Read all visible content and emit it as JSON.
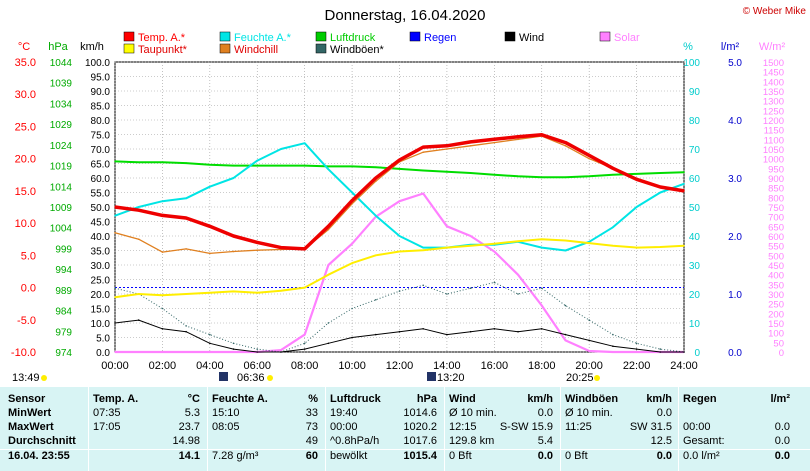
{
  "title": "Donnerstag, 16.04.2020",
  "copyright": "© Weber Mike",
  "legend": [
    {
      "label": "Temp. A.*",
      "color": "#ff0000"
    },
    {
      "label": "Feuchte A.*",
      "color": "#00e5e5"
    },
    {
      "label": "Luftdruck",
      "color": "#00cc00"
    },
    {
      "label": "Regen",
      "color": "#0000ff"
    },
    {
      "label": "Wind",
      "color": "#000000"
    },
    {
      "label": "Solar",
      "color": "#ff80ff"
    },
    {
      "label": "Taupunkt*",
      "color": "#ffff00"
    },
    {
      "label": "Windchill",
      "color": "#e08020"
    },
    {
      "label": "Windböen*",
      "color": "#336666"
    }
  ],
  "axis_units": {
    "temp": "°C",
    "pressure": "hPa",
    "wind": "km/h",
    "humidity": "%",
    "rain": "l/m²",
    "solar": "W/m²"
  },
  "axis_ticks": {
    "temp": [
      "35.0",
      "30.0",
      "25.0",
      "20.0",
      "15.0",
      "10.0",
      "5.0",
      "0.0",
      "-5.0",
      "-10.0"
    ],
    "pressure": [
      "1044",
      "1039",
      "1034",
      "1029",
      "1024",
      "1019",
      "1014",
      "1009",
      "1004",
      "999",
      "994",
      "989",
      "984",
      "979",
      "974"
    ],
    "wind": [
      "100.0",
      "95.0",
      "90.0",
      "85.0",
      "80.0",
      "75.0",
      "70.0",
      "65.0",
      "60.0",
      "55.0",
      "50.0",
      "45.0",
      "40.0",
      "35.0",
      "30.0",
      "25.0",
      "20.0",
      "15.0",
      "10.0",
      "5.0",
      "0.0"
    ],
    "humidity": [
      "100",
      "90",
      "80",
      "70",
      "60",
      "50",
      "40",
      "30",
      "20",
      "10",
      "0"
    ],
    "rain": [
      "5.0",
      "4.0",
      "3.0",
      "2.0",
      "1.0",
      "0.0"
    ],
    "solar": [
      "1500",
      "1450",
      "1400",
      "1350",
      "1300",
      "1250",
      "1200",
      "1150",
      "1100",
      "1050",
      "1000",
      "950",
      "900",
      "850",
      "800",
      "750",
      "700",
      "650",
      "600",
      "550",
      "500",
      "450",
      "400",
      "350",
      "300",
      "250",
      "200",
      "150",
      "100",
      "50",
      "0"
    ],
    "time": [
      "00:00",
      "02:00",
      "04:00",
      "06:00",
      "08:00",
      "10:00",
      "12:00",
      "14:00",
      "16:00",
      "18:00",
      "20:00",
      "22:00",
      "24:00"
    ]
  },
  "sun_markers": {
    "sunrise": "06:36",
    "sunset": "20:25",
    "noon": "13:20",
    "update": "13:49"
  },
  "chart_data": {
    "type": "line",
    "x_hours": [
      0,
      1,
      2,
      3,
      4,
      5,
      6,
      7,
      8,
      9,
      10,
      11,
      12,
      13,
      14,
      15,
      16,
      17,
      18,
      19,
      20,
      21,
      22,
      23,
      24
    ],
    "series": [
      {
        "name": "Temp. A.*",
        "axis": "temp",
        "values": [
          12.5,
          12.0,
          11.2,
          10.8,
          9.5,
          8.0,
          7.0,
          6.2,
          6.0,
          9.5,
          13.5,
          17.0,
          19.8,
          21.8,
          22.0,
          22.6,
          23.0,
          23.4,
          23.7,
          22.5,
          20.5,
          18.5,
          16.8,
          15.6,
          15.0
        ]
      },
      {
        "name": "Taupunkt*",
        "axis": "temp",
        "values": [
          -1.5,
          -1.0,
          -1.2,
          -1.0,
          -0.8,
          -0.6,
          -0.8,
          -0.5,
          0.0,
          2.0,
          3.8,
          5.0,
          5.6,
          5.8,
          6.2,
          6.5,
          6.8,
          7.2,
          7.5,
          7.3,
          6.9,
          6.5,
          6.2,
          6.3,
          6.5
        ]
      },
      {
        "name": "Windchill",
        "axis": "temp",
        "values": [
          8.5,
          7.5,
          5.5,
          6.0,
          5.3,
          5.6,
          5.8,
          5.9,
          6.0,
          9.0,
          13.0,
          16.5,
          19.5,
          21.0,
          21.5,
          22.0,
          22.5,
          23.0,
          23.5,
          22.0,
          20.0,
          18.5,
          16.8,
          15.6,
          15.0
        ]
      },
      {
        "name": "Feuchte A.*",
        "axis": "humidity",
        "values": [
          47,
          50,
          52,
          53,
          57,
          60,
          66,
          70,
          72,
          63,
          55,
          47,
          40,
          36,
          36,
          37,
          37,
          38,
          36,
          35,
          38,
          43,
          50,
          55,
          58
        ]
      },
      {
        "name": "Luftdruck",
        "axis": "pressure",
        "values": [
          1020,
          1019.8,
          1019.8,
          1019.6,
          1019.2,
          1019.0,
          1019.0,
          1019.0,
          1019.0,
          1018.8,
          1018.8,
          1018.6,
          1018.2,
          1017.8,
          1017.5,
          1017.2,
          1016.8,
          1016.4,
          1016.2,
          1016.2,
          1016.4,
          1016.8,
          1017.0,
          1017.2,
          1017.4
        ]
      },
      {
        "name": "Wind",
        "axis": "wind",
        "values": [
          10,
          11,
          8,
          7,
          3,
          1,
          0,
          0,
          1,
          3,
          5,
          6,
          7,
          8,
          6,
          7,
          8,
          7,
          8,
          6,
          4,
          2,
          1,
          0,
          0
        ]
      },
      {
        "name": "Windböen*",
        "axis": "wind",
        "values": [
          22,
          20,
          15,
          9,
          6,
          3,
          1,
          0,
          3,
          10,
          15,
          18,
          21,
          23,
          20,
          22,
          24,
          20,
          22,
          16,
          11,
          6,
          3,
          1,
          0
        ]
      },
      {
        "name": "Solar",
        "axis": "solar",
        "values": [
          0,
          0,
          0,
          0,
          0,
          0,
          0,
          10,
          90,
          450,
          560,
          700,
          780,
          820,
          650,
          600,
          520,
          400,
          240,
          60,
          5,
          0,
          0,
          0,
          0
        ]
      }
    ]
  },
  "table": {
    "headers": [
      "Sensor",
      "Temp. A.",
      "°C",
      "Feuchte A.",
      "%",
      "Luftdruck",
      "hPa",
      "Wind",
      "km/h",
      "Windböen",
      "km/h",
      "Regen",
      "l/m²"
    ],
    "rows": [
      {
        "label": "MinWert",
        "c": [
          "07:35",
          "5.3",
          "15:10",
          "33",
          "19:40",
          "1014.6",
          "Ø 10 min.",
          "0.0",
          "Ø 10 min.",
          "0.0",
          "",
          ""
        ]
      },
      {
        "label": "MaxWert",
        "c": [
          "17:05",
          "23.7",
          "08:05",
          "73",
          "00:00",
          "1020.2",
          "12:15",
          "S-SW 15.9",
          "11:25",
          "SW 31.5",
          "00:00",
          "0.0"
        ]
      },
      {
        "label": "Durchschnitt",
        "c": [
          "",
          "14.98",
          "",
          "49",
          "^0.8hPa/h",
          "1017.6",
          "129.8 km",
          "5.4",
          "",
          "12.5",
          "Gesamt:",
          "0.0"
        ]
      },
      {
        "label": "16.04. 23:55",
        "c": [
          "",
          "14.1",
          "7.28 g/m³",
          "60",
          "bewölkt",
          "1015.4",
          "0 Bft",
          "0.0",
          "0 Bft",
          "0.0",
          "0.0 l/m²",
          "0.0"
        ]
      }
    ]
  }
}
